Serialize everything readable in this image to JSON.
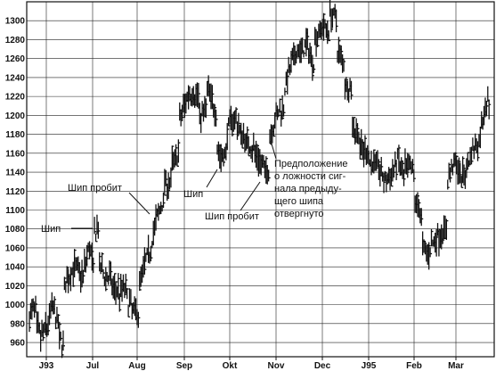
{
  "chart_data": {
    "type": "bar",
    "style": "ohlc-price-bars",
    "title": "",
    "xlabel": "",
    "ylabel": "",
    "ylim": [
      945,
      1320
    ],
    "grid": true,
    "y_ticks": [
      960,
      980,
      1000,
      1020,
      1040,
      1060,
      1080,
      1100,
      1120,
      1140,
      1160,
      1180,
      1200,
      1220,
      1240,
      1260,
      1280,
      1300
    ],
    "x_ticks": [
      "J93",
      "Jul",
      "Aug",
      "Sep",
      "Okt",
      "Nov",
      "Dec",
      "J95",
      "Feb",
      "Mar"
    ],
    "segments": [
      {
        "from": 0,
        "to": 6,
        "points": [
          [
            0,
            985
          ],
          [
            0.7,
            998
          ],
          [
            1,
            990
          ]
        ]
      },
      {
        "from": 6,
        "to": 14,
        "points": [
          [
            0,
            975
          ],
          [
            0.5,
            965
          ],
          [
            1,
            975
          ]
        ]
      },
      {
        "from": 14,
        "to": 22,
        "points": [
          [
            0,
            975
          ],
          [
            0.6,
            1000
          ],
          [
            1,
            985
          ]
        ]
      },
      {
        "from": 22,
        "to": 24,
        "points": [
          [
            0,
            985
          ],
          [
            1,
            980
          ]
        ]
      },
      {
        "from": 24,
        "to": 28,
        "points": [
          [
            0,
            962
          ],
          [
            1,
            960
          ]
        ]
      },
      {
        "from": 28,
        "to": 44,
        "points": [
          [
            0,
            1018
          ],
          [
            0.5,
            1040
          ],
          [
            1,
            1030
          ]
        ]
      },
      {
        "from": 44,
        "to": 52,
        "points": [
          [
            0,
            1040
          ],
          [
            0.5,
            1062
          ],
          [
            1,
            1040
          ]
        ]
      },
      {
        "from": 52,
        "to": 56,
        "points": [
          [
            0,
            1075
          ],
          [
            1,
            1080
          ]
        ]
      },
      {
        "from": 56,
        "to": 64,
        "points": [
          [
            0,
            1040
          ],
          [
            0.6,
            1030
          ],
          [
            1,
            1028
          ]
        ]
      },
      {
        "from": 64,
        "to": 72,
        "points": [
          [
            0,
            1030
          ],
          [
            0.5,
            1015
          ],
          [
            1,
            1018
          ]
        ]
      },
      {
        "from": 72,
        "to": 80,
        "points": [
          [
            0,
            1010
          ],
          [
            0.5,
            1022
          ],
          [
            1,
            1002
          ]
        ]
      },
      {
        "from": 80,
        "to": 88,
        "points": [
          [
            0,
            1000
          ],
          [
            0.6,
            992
          ],
          [
            1,
            990
          ]
        ]
      },
      {
        "from": 88,
        "to": 98,
        "points": [
          [
            0,
            1025
          ],
          [
            0.5,
            1045
          ],
          [
            1,
            1060
          ]
        ]
      },
      {
        "from": 98,
        "to": 108,
        "points": [
          [
            0,
            1070
          ],
          [
            0.5,
            1095
          ],
          [
            1,
            1110
          ]
        ]
      },
      {
        "from": 108,
        "to": 114,
        "points": [
          [
            0,
            1130
          ],
          [
            1,
            1128
          ]
        ]
      },
      {
        "from": 114,
        "to": 120,
        "points": [
          [
            0,
            1150
          ],
          [
            1,
            1160
          ]
        ]
      },
      {
        "from": 120,
        "to": 136,
        "points": [
          [
            0,
            1195
          ],
          [
            0.5,
            1225
          ],
          [
            1,
            1220
          ]
        ]
      },
      {
        "from": 136,
        "to": 142,
        "points": [
          [
            0,
            1200
          ],
          [
            1,
            1205
          ]
        ]
      },
      {
        "from": 142,
        "to": 150,
        "points": [
          [
            0,
            1230
          ],
          [
            0.5,
            1215
          ],
          [
            1,
            1205
          ]
        ]
      },
      {
        "from": 150,
        "to": 158,
        "points": [
          [
            0,
            1165
          ],
          [
            0.5,
            1155
          ],
          [
            1,
            1160
          ]
        ]
      },
      {
        "from": 158,
        "to": 170,
        "points": [
          [
            0,
            1185
          ],
          [
            0.5,
            1200
          ],
          [
            1,
            1180
          ]
        ]
      },
      {
        "from": 170,
        "to": 180,
        "points": [
          [
            0,
            1180
          ],
          [
            0.5,
            1170
          ],
          [
            1,
            1165
          ]
        ]
      },
      {
        "from": 180,
        "to": 186,
        "points": [
          [
            0,
            1160
          ],
          [
            1,
            1150
          ]
        ]
      },
      {
        "from": 186,
        "to": 192,
        "points": [
          [
            0,
            1145
          ],
          [
            1,
            1140
          ]
        ]
      },
      {
        "from": 192,
        "to": 204,
        "points": [
          [
            0,
            1180
          ],
          [
            0.5,
            1200
          ],
          [
            1,
            1210
          ]
        ]
      },
      {
        "from": 204,
        "to": 216,
        "points": [
          [
            0,
            1230
          ],
          [
            0.5,
            1255
          ],
          [
            1,
            1270
          ]
        ]
      },
      {
        "from": 216,
        "to": 228,
        "points": [
          [
            0,
            1265
          ],
          [
            0.5,
            1275
          ],
          [
            1,
            1255
          ]
        ]
      },
      {
        "from": 228,
        "to": 240,
        "points": [
          [
            0,
            1280
          ],
          [
            0.5,
            1295
          ],
          [
            1,
            1290
          ]
        ]
      },
      {
        "from": 240,
        "to": 246,
        "points": [
          [
            0,
            1310
          ],
          [
            1,
            1300
          ]
        ]
      },
      {
        "from": 246,
        "to": 252,
        "points": [
          [
            0,
            1270
          ],
          [
            1,
            1255
          ]
        ]
      },
      {
        "from": 252,
        "to": 258,
        "points": [
          [
            0,
            1235
          ],
          [
            1,
            1225
          ]
        ]
      },
      {
        "from": 258,
        "to": 264,
        "points": [
          [
            0,
            1190
          ],
          [
            1,
            1180
          ]
        ]
      },
      {
        "from": 264,
        "to": 272,
        "points": [
          [
            0,
            1165
          ],
          [
            1,
            1160
          ]
        ]
      },
      {
        "from": 272,
        "to": 280,
        "points": [
          [
            0,
            1150
          ],
          [
            1,
            1148
          ]
        ]
      },
      {
        "from": 280,
        "to": 290,
        "points": [
          [
            0,
            1140
          ],
          [
            0.5,
            1130
          ],
          [
            1,
            1135
          ]
        ]
      },
      {
        "from": 290,
        "to": 300,
        "points": [
          [
            0,
            1140
          ],
          [
            0.5,
            1155
          ],
          [
            1,
            1130
          ]
        ]
      },
      {
        "from": 300,
        "to": 308,
        "points": [
          [
            0,
            1145
          ],
          [
            1,
            1138
          ]
        ]
      },
      {
        "from": 308,
        "to": 314,
        "points": [
          [
            0,
            1110
          ],
          [
            1,
            1095
          ]
        ]
      },
      {
        "from": 314,
        "to": 324,
        "points": [
          [
            0,
            1060
          ],
          [
            0.5,
            1055
          ],
          [
            1,
            1068
          ]
        ]
      },
      {
        "from": 324,
        "to": 334,
        "points": [
          [
            0,
            1070
          ],
          [
            0.5,
            1075
          ],
          [
            1,
            1080
          ]
        ]
      },
      {
        "from": 334,
        "to": 344,
        "points": [
          [
            0,
            1130
          ],
          [
            0.5,
            1150
          ],
          [
            1,
            1145
          ]
        ]
      },
      {
        "from": 344,
        "to": 350,
        "points": [
          [
            0,
            1130
          ],
          [
            1,
            1145
          ]
        ]
      },
      {
        "from": 350,
        "to": 360,
        "points": [
          [
            0,
            1150
          ],
          [
            0.5,
            1165
          ],
          [
            1,
            1170
          ]
        ]
      },
      {
        "from": 360,
        "to": 368,
        "points": [
          [
            0,
            1180
          ],
          [
            0.5,
            1210
          ],
          [
            1,
            1215
          ]
        ]
      }
    ],
    "annotations": [
      {
        "id": "spike",
        "text": "Шип"
      },
      {
        "id": "spike-breakout-1",
        "text": "Шип пробит"
      },
      {
        "id": "spike-2",
        "text": "Шип"
      },
      {
        "id": "spike-breakout-2",
        "text": "Шип пробит"
      },
      {
        "id": "assumption",
        "lines": [
          "Предположение",
          "о ложности сиг-",
          "нала предыду-",
          "щего шипа",
          "отвергнуто"
        ]
      }
    ]
  }
}
